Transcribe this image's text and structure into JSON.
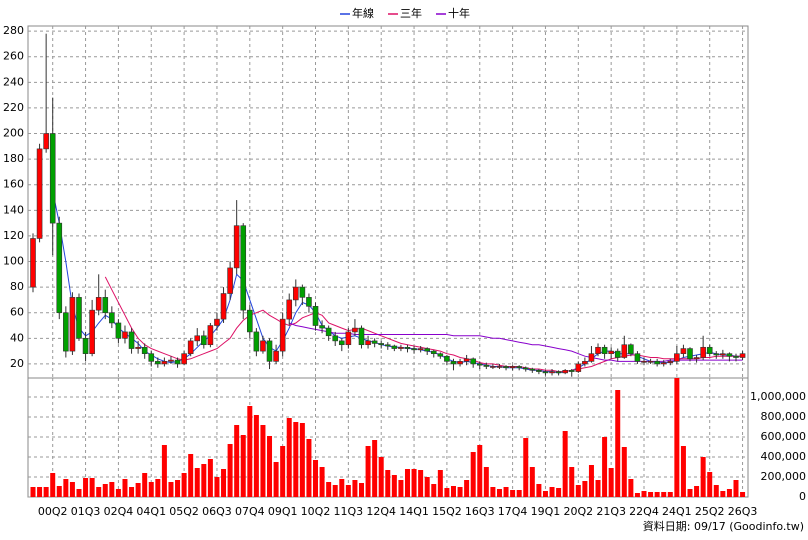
{
  "chart_data": {
    "type": "candlestick",
    "categories": [
      null,
      null,
      null,
      "00Q2",
      null,
      null,
      null,
      null,
      "01Q3",
      null,
      null,
      null,
      null,
      "02Q4",
      null,
      null,
      null,
      null,
      "04Q1",
      null,
      null,
      null,
      null,
      "05Q2",
      null,
      null,
      null,
      null,
      "06Q3",
      null,
      null,
      null,
      null,
      "07Q4",
      null,
      null,
      null,
      null,
      "09Q1",
      null,
      null,
      null,
      null,
      "10Q2",
      null,
      null,
      null,
      null,
      "11Q3",
      null,
      null,
      null,
      null,
      "12Q4",
      null,
      null,
      null,
      null,
      "14Q1",
      null,
      null,
      null,
      null,
      "15Q2",
      null,
      null,
      null,
      null,
      "16Q3",
      null,
      null,
      null,
      null,
      "17Q4",
      null,
      null,
      null,
      null,
      "19Q1",
      null,
      null,
      null,
      null,
      "20Q2",
      null,
      null,
      null,
      null,
      "21Q3",
      null,
      null,
      null,
      null,
      "22Q4",
      null,
      null,
      null,
      null,
      "24Q1",
      null,
      null,
      null,
      null,
      "25Q2",
      null,
      null,
      null,
      null,
      "26Q3"
    ],
    "open": [
      80,
      118,
      188,
      200,
      130,
      60,
      30,
      72,
      40,
      28,
      62,
      72,
      60,
      52,
      40,
      45,
      32,
      33,
      28,
      22,
      20,
      22,
      23,
      20,
      28,
      38,
      42,
      35,
      50,
      55,
      75,
      95,
      128,
      62,
      45,
      30,
      38,
      22,
      30,
      55,
      70,
      80,
      72,
      65,
      50,
      48,
      42,
      38,
      35,
      45,
      48,
      35,
      38,
      36,
      35,
      34,
      32,
      33,
      32,
      31,
      32,
      30,
      28,
      26,
      22,
      20,
      22,
      24,
      20,
      19,
      18,
      18,
      18,
      17,
      18,
      17,
      16,
      15,
      14,
      13,
      14,
      13,
      15,
      14,
      20,
      22,
      28,
      33,
      28,
      30,
      25,
      35,
      28,
      22,
      22,
      22,
      20,
      21,
      22,
      28,
      32,
      24,
      25,
      33,
      28,
      27,
      28,
      26,
      25
    ],
    "high": [
      122,
      192,
      278,
      228,
      135,
      65,
      76,
      75,
      45,
      70,
      90,
      78,
      65,
      55,
      50,
      48,
      38,
      36,
      30,
      25,
      25,
      26,
      25,
      30,
      40,
      48,
      46,
      52,
      60,
      80,
      100,
      148,
      130,
      66,
      48,
      42,
      40,
      35,
      60,
      75,
      86,
      82,
      75,
      68,
      54,
      50,
      45,
      40,
      48,
      55,
      50,
      42,
      40,
      38,
      37,
      35,
      35,
      35,
      34,
      34,
      33,
      31,
      29,
      27,
      24,
      24,
      27,
      25,
      22,
      21,
      20,
      20,
      19,
      19,
      19,
      18,
      17,
      16,
      15,
      16,
      15,
      16,
      16,
      22,
      25,
      34,
      36,
      35,
      33,
      32,
      42,
      36,
      30,
      25,
      24,
      24,
      23,
      24,
      34,
      35,
      33,
      27,
      42,
      35,
      30,
      31,
      29,
      28,
      30
    ],
    "low": [
      76,
      115,
      185,
      105,
      55,
      25,
      27,
      38,
      22,
      26,
      58,
      55,
      48,
      36,
      36,
      28,
      28,
      24,
      18,
      17,
      18,
      20,
      17,
      19,
      26,
      34,
      32,
      33,
      46,
      52,
      70,
      90,
      55,
      40,
      26,
      28,
      16,
      20,
      26,
      50,
      65,
      66,
      60,
      46,
      44,
      38,
      34,
      30,
      32,
      42,
      32,
      32,
      33,
      32,
      31,
      30,
      30,
      29,
      28,
      29,
      27,
      25,
      24,
      19,
      15,
      18,
      19,
      17,
      16,
      16,
      16,
      16,
      15,
      15,
      15,
      14,
      13,
      12,
      11,
      11,
      11,
      12,
      10,
      13,
      18,
      21,
      26,
      24,
      24,
      22,
      24,
      26,
      20,
      19,
      20,
      18,
      18,
      19,
      20,
      25,
      22,
      21,
      23,
      26,
      24,
      24,
      22,
      22,
      23
    ],
    "close": [
      118,
      188,
      200,
      130,
      60,
      30,
      72,
      40,
      28,
      62,
      72,
      60,
      52,
      40,
      45,
      32,
      33,
      28,
      22,
      20,
      22,
      23,
      20,
      28,
      38,
      42,
      35,
      50,
      55,
      75,
      95,
      128,
      62,
      45,
      30,
      38,
      22,
      30,
      55,
      70,
      80,
      72,
      65,
      50,
      48,
      42,
      38,
      35,
      45,
      48,
      35,
      38,
      36,
      35,
      34,
      32,
      33,
      32,
      31,
      32,
      30,
      28,
      26,
      22,
      20,
      22,
      24,
      20,
      19,
      18,
      18,
      18,
      17,
      18,
      17,
      16,
      15,
      14,
      13,
      14,
      13,
      15,
      14,
      20,
      22,
      28,
      33,
      28,
      30,
      25,
      35,
      28,
      22,
      22,
      22,
      20,
      21,
      22,
      28,
      32,
      24,
      25,
      33,
      28,
      27,
      28,
      26,
      25,
      28
    ],
    "up_color": "#ff0000",
    "down_color": "#00a000",
    "series": [
      {
        "name": "年線",
        "color": "#2244dd",
        "values": [
          null,
          null,
          null,
          155,
          130,
          100,
          65,
          48,
          42,
          45,
          52,
          58,
          55,
          48,
          44,
          40,
          36,
          30,
          27,
          24,
          22,
          21,
          22,
          24,
          28,
          33,
          38,
          42,
          48,
          55,
          70,
          90,
          85,
          70,
          55,
          40,
          33,
          30,
          38,
          48,
          60,
          68,
          66,
          60,
          50,
          46,
          42,
          40,
          41,
          42,
          40,
          38,
          37,
          35,
          34,
          33,
          33,
          32,
          32,
          31,
          30,
          29,
          27,
          24,
          22,
          21,
          22,
          21,
          20,
          19,
          18,
          18,
          17,
          17,
          17,
          16,
          15,
          15,
          14,
          14,
          13,
          14,
          15,
          17,
          20,
          24,
          28,
          30,
          30,
          28,
          28,
          28,
          26,
          24,
          22,
          21,
          21,
          21,
          23,
          25,
          26,
          27,
          28,
          29,
          28,
          27,
          27,
          26,
          26
        ]
      },
      {
        "name": "三年",
        "color": "#dd1166",
        "values": [
          null,
          null,
          null,
          null,
          null,
          null,
          null,
          null,
          null,
          null,
          null,
          88,
          78,
          68,
          58,
          48,
          40,
          35,
          32,
          30,
          28,
          26,
          24,
          23,
          24,
          26,
          28,
          30,
          32,
          36,
          40,
          48,
          54,
          58,
          60,
          62,
          58,
          55,
          52,
          50,
          52,
          56,
          58,
          60,
          58,
          52,
          50,
          48,
          46,
          47,
          48,
          46,
          44,
          42,
          40,
          38,
          36,
          35,
          34,
          33,
          32,
          31,
          30,
          28,
          27,
          25,
          24,
          23,
          21,
          20,
          20,
          19,
          18,
          18,
          18,
          17,
          16,
          16,
          15,
          15,
          14,
          14,
          15,
          16,
          17,
          18,
          20,
          22,
          24,
          25,
          26,
          27,
          27,
          26,
          25,
          25,
          24,
          24,
          24,
          24,
          24,
          24,
          25,
          25,
          26,
          26,
          26,
          26,
          26
        ]
      },
      {
        "name": "十年",
        "color": "#8800cc",
        "values": [
          null,
          null,
          null,
          null,
          null,
          null,
          null,
          null,
          null,
          null,
          null,
          null,
          null,
          null,
          null,
          null,
          null,
          null,
          null,
          null,
          null,
          null,
          null,
          null,
          null,
          null,
          null,
          null,
          null,
          null,
          null,
          null,
          null,
          null,
          null,
          null,
          null,
          null,
          null,
          52,
          50,
          49,
          48,
          47,
          46,
          45,
          44,
          44,
          44,
          43,
          43,
          43,
          43,
          43,
          43,
          43,
          43,
          43,
          43,
          43,
          43,
          43,
          43,
          43,
          42,
          42,
          42,
          42,
          42,
          41,
          40,
          40,
          39,
          38,
          37,
          36,
          35,
          35,
          34,
          33,
          32,
          31,
          30,
          28,
          26,
          25,
          24,
          23,
          23,
          22,
          22,
          22,
          22,
          22,
          22,
          22,
          22,
          23,
          23,
          23,
          23,
          23,
          23,
          23,
          23,
          23,
          23,
          23,
          23
        ]
      }
    ],
    "ylim": [
      9,
      284
    ],
    "yticks": [
      20,
      40,
      60,
      80,
      100,
      120,
      140,
      160,
      180,
      200,
      220,
      240,
      260,
      280
    ],
    "grid": true,
    "volume": {
      "color": "#ff0000",
      "ylim": [
        0,
        1190000
      ],
      "yticks": [
        0,
        {
          "value": 200000,
          "label": "200,000"
        },
        {
          "value": 400000,
          "label": "400,000"
        },
        {
          "value": 600000,
          "label": "600,000"
        },
        {
          "value": 800000,
          "label": "800,000"
        },
        {
          "value": 1000000,
          "label": "1,000,000"
        }
      ],
      "values": [
        100000,
        100000,
        100000,
        240000,
        110000,
        180000,
        150000,
        80000,
        190000,
        190000,
        100000,
        130000,
        150000,
        80000,
        180000,
        100000,
        140000,
        240000,
        150000,
        180000,
        520000,
        150000,
        170000,
        240000,
        430000,
        290000,
        330000,
        380000,
        200000,
        280000,
        530000,
        720000,
        620000,
        910000,
        820000,
        720000,
        610000,
        350000,
        510000,
        790000,
        750000,
        740000,
        580000,
        370000,
        300000,
        150000,
        120000,
        180000,
        120000,
        170000,
        140000,
        510000,
        570000,
        400000,
        270000,
        220000,
        170000,
        280000,
        280000,
        270000,
        200000,
        130000,
        270000,
        90000,
        110000,
        100000,
        170000,
        450000,
        520000,
        300000,
        100000,
        80000,
        100000,
        70000,
        70000,
        590000,
        300000,
        130000,
        60000,
        100000,
        90000,
        660000,
        300000,
        120000,
        160000,
        320000,
        170000,
        600000,
        290000,
        1070000,
        500000,
        180000,
        40000,
        60000,
        50000,
        50000,
        50000,
        50000,
        1190000,
        510000,
        80000,
        110000,
        400000,
        250000,
        120000,
        60000,
        80000,
        170000,
        50000
      ]
    }
  },
  "source_note": "資料日期: 09/17  (Goodinfo.tw)"
}
